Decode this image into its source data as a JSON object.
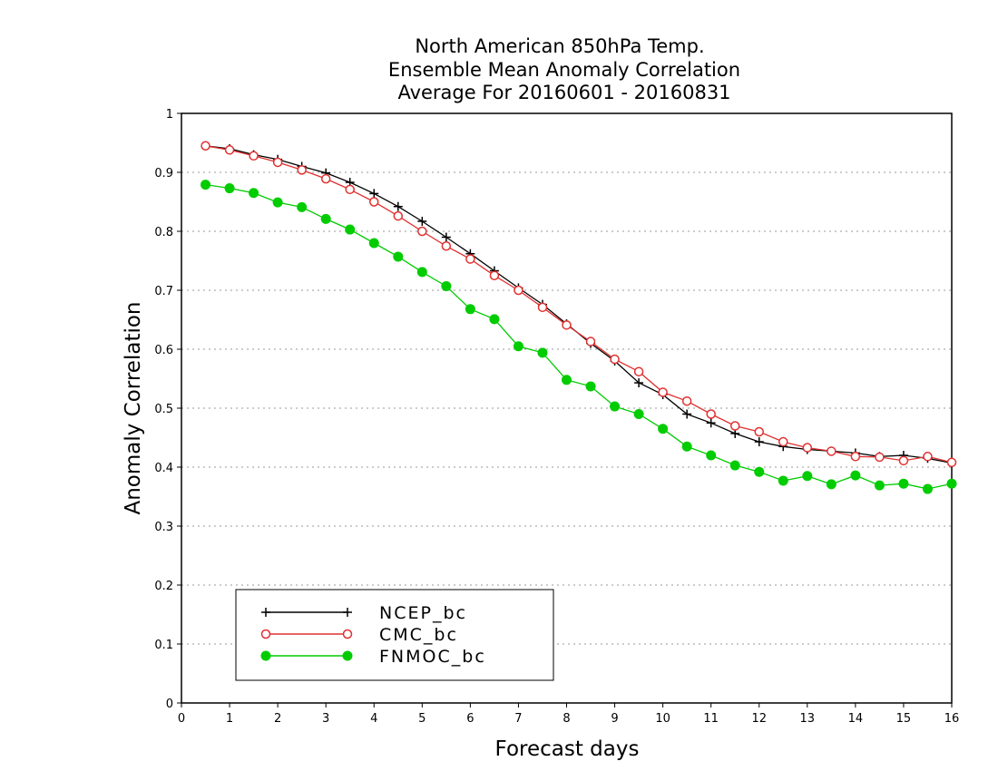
{
  "chart_data": {
    "type": "line",
    "title": [
      "North American 850hPa Temp.",
      "Ensemble Mean Anomaly Correlation",
      "Average For 20160601 - 20160831"
    ],
    "xlabel": "Forecast days",
    "ylabel": "Anomaly Correlation",
    "xlim": [
      0,
      16
    ],
    "ylim": [
      0,
      1
    ],
    "x_ticks": [
      0,
      1,
      2,
      3,
      4,
      5,
      6,
      7,
      8,
      9,
      10,
      11,
      12,
      13,
      14,
      15,
      16
    ],
    "y_ticks": [
      0,
      0.1,
      0.2,
      0.3,
      0.4,
      0.5,
      0.6,
      0.7,
      0.8,
      0.9,
      1
    ],
    "grid": "horizontal dotted",
    "legend_position": "bottom-left",
    "x": [
      0.5,
      1,
      1.5,
      2,
      2.5,
      3,
      3.5,
      4,
      4.5,
      5,
      5.5,
      6,
      6.5,
      7,
      7.5,
      8,
      8.5,
      9,
      9.5,
      10,
      10.5,
      11,
      11.5,
      12,
      12.5,
      13,
      13.5,
      14,
      14.5,
      15,
      15.5,
      16
    ],
    "series": [
      {
        "name": "NCEP_bc",
        "color": "#000000",
        "marker": "plus",
        "values": [
          0.945,
          0.94,
          0.93,
          0.922,
          0.91,
          0.899,
          0.883,
          0.864,
          0.842,
          0.817,
          0.79,
          0.762,
          0.733,
          0.704,
          0.676,
          0.643,
          0.61,
          0.58,
          0.543,
          0.523,
          0.49,
          0.475,
          0.457,
          0.443,
          0.435,
          0.43,
          0.427,
          0.424,
          0.418,
          0.42,
          0.415,
          0.407
        ]
      },
      {
        "name": "CMC_bc",
        "color": "#e03030",
        "marker": "open-circle",
        "values": [
          0.945,
          0.938,
          0.928,
          0.917,
          0.904,
          0.889,
          0.871,
          0.85,
          0.826,
          0.8,
          0.775,
          0.753,
          0.725,
          0.7,
          0.671,
          0.641,
          0.613,
          0.583,
          0.562,
          0.527,
          0.512,
          0.49,
          0.47,
          0.46,
          0.443,
          0.433,
          0.427,
          0.418,
          0.417,
          0.411,
          0.418,
          0.408
        ]
      },
      {
        "name": "FNMOC_bc",
        "color": "#00cc00",
        "marker": "filled-circle",
        "values": [
          0.879,
          0.873,
          0.865,
          0.849,
          0.841,
          0.821,
          0.803,
          0.78,
          0.757,
          0.731,
          0.707,
          0.668,
          0.651,
          0.605,
          0.594,
          0.548,
          0.537,
          0.503,
          0.49,
          0.465,
          0.435,
          0.42,
          0.403,
          0.392,
          0.377,
          0.385,
          0.371,
          0.386,
          0.369,
          0.372,
          0.363,
          0.372
        ]
      }
    ]
  }
}
